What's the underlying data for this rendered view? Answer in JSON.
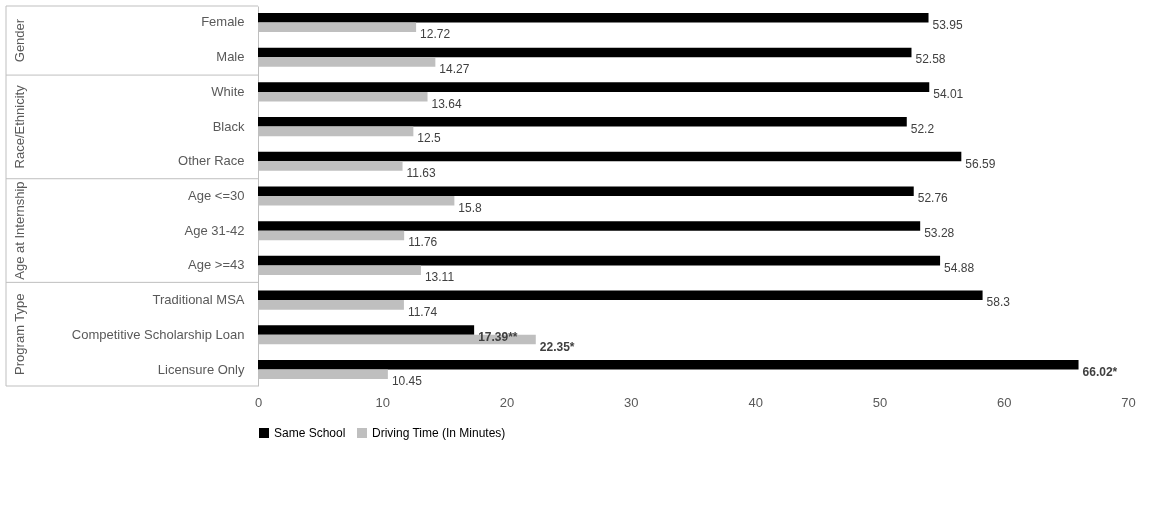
{
  "chart_data": {
    "type": "bar",
    "orientation": "horizontal",
    "categories": [
      "Female",
      "Male",
      "White",
      "Black ",
      "Other Race",
      "Age <=30",
      "Age 31-42",
      "Age >=43",
      "Traditional MSA",
      "Competitive Scholarship Loan",
      "Licensure Only"
    ],
    "series": [
      {
        "name": "Same School",
        "color": "#000000",
        "values": [
          53.95,
          52.58,
          54.01,
          52.2,
          56.59,
          52.76,
          53.28,
          54.88,
          58.3,
          17.39,
          66.02
        ],
        "value_labels": [
          "53.95",
          "52.58",
          "54.01",
          "52.2",
          "56.59",
          "52.76",
          "53.28",
          "54.88",
          "58.3",
          "17.39**",
          "66.02*"
        ]
      },
      {
        "name": "Driving Time (In Minutes)",
        "color": "#bfbfbf",
        "values": [
          12.72,
          14.27,
          13.64,
          12.5,
          11.63,
          15.8,
          11.76,
          13.11,
          11.74,
          22.35,
          10.45
        ],
        "value_labels": [
          "12.72",
          "14.27",
          "13.64",
          "12.5",
          "11.63",
          "15.8",
          "11.76",
          "13.11",
          "11.74",
          "22.35*",
          "10.45"
        ]
      }
    ],
    "annotations": [
      "Gender",
      "Race/Ethnicity",
      "Age at Internship",
      "Program Type"
    ],
    "xlim": [
      0,
      70
    ],
    "xticks": [
      0,
      10,
      20,
      30,
      40,
      50,
      60,
      70
    ],
    "grid": false,
    "legend": "bottom"
  }
}
